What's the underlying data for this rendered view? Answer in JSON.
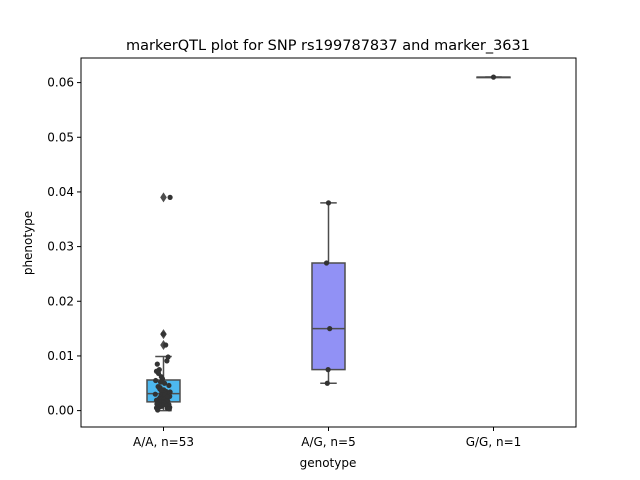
{
  "chart_data": {
    "type": "box",
    "title": "markerQTL plot for SNP rs199787837 and marker_3631",
    "xlabel": "genotype",
    "ylabel": "phenotype",
    "ylim": [
      -0.003,
      0.0645
    ],
    "yticks": [
      0.0,
      0.01,
      0.02,
      0.03,
      0.04,
      0.05,
      0.06
    ],
    "ytick_labels": [
      "0.00",
      "0.01",
      "0.02",
      "0.03",
      "0.04",
      "0.05",
      "0.06"
    ],
    "grid": false,
    "categories": [
      "A/A, n=53",
      "A/G, n=5",
      "G/G, n=1"
    ],
    "boxes": [
      {
        "category": "A/A, n=53",
        "color": "#4db8ef",
        "whisker_low": 0.0,
        "q1": 0.0016,
        "median": 0.0031,
        "q3": 0.0056,
        "whisker_high": 0.0099,
        "outliers": [
          0.012,
          0.014,
          0.039
        ]
      },
      {
        "category": "A/G, n=5",
        "color": "#9191f5",
        "whisker_low": 0.005,
        "q1": 0.0075,
        "median": 0.015,
        "q3": 0.027,
        "whisker_high": 0.038,
        "outliers": []
      },
      {
        "category": "G/G, n=1",
        "color": "#f3a0c8",
        "whisker_low": 0.061,
        "q1": 0.061,
        "median": 0.061,
        "q3": 0.061,
        "whisker_high": 0.061,
        "outliers": []
      }
    ],
    "points": [
      {
        "category": "A/A, n=53",
        "jitter": [
          0.39,
          0.22,
          0.28,
          0.34,
          0.31,
          0.07,
          0.12,
          0.05,
          0.1,
          0.17,
          0.2,
          0.03,
          0.15,
          0.25,
          0.36,
          0.09,
          0.14,
          0.13,
          0.23,
          0.17,
          0.29,
          0.39,
          0.27,
          0.37,
          0.34,
          0.02,
          0.27,
          0.17,
          0.25,
          0.38,
          0.32,
          0.14,
          0.2,
          0.11,
          0.24,
          0.05,
          0.33,
          0.3,
          0.16,
          0.23,
          0.23,
          0.08,
          0.06,
          0.36,
          0.21,
          0.31,
          0.19,
          0.13,
          0.38,
          0.05,
          0.32,
          0.37,
          0.08
        ],
        "values": [
          0.039,
          0.014,
          0.012,
          0.0098,
          0.0091,
          0.0085,
          0.0075,
          0.0072,
          0.0068,
          0.0062,
          0.0058,
          0.0055,
          0.0052,
          0.005,
          0.0046,
          0.0044,
          0.0042,
          0.004,
          0.0038,
          0.0036,
          0.0035,
          0.0034,
          0.0033,
          0.0032,
          0.0031,
          0.003,
          0.003,
          0.0029,
          0.0028,
          0.0026,
          0.0025,
          0.0024,
          0.0022,
          0.0021,
          0.002,
          0.0019,
          0.0018,
          0.0017,
          0.0016,
          0.0015,
          0.0014,
          0.0013,
          0.0012,
          0.0011,
          0.001,
          0.0009,
          0.0008,
          0.0007,
          0.0006,
          0.0005,
          0.0004,
          0.0003,
          0.0001
        ]
      },
      {
        "category": "A/G, n=5",
        "jitter": [
          0.0,
          -0.05,
          0.03,
          -0.01,
          -0.03
        ],
        "values": [
          0.038,
          0.027,
          0.015,
          0.0075,
          0.005
        ]
      },
      {
        "category": "G/G, n=1",
        "jitter": [
          0.0
        ],
        "values": [
          0.061
        ]
      }
    ]
  }
}
